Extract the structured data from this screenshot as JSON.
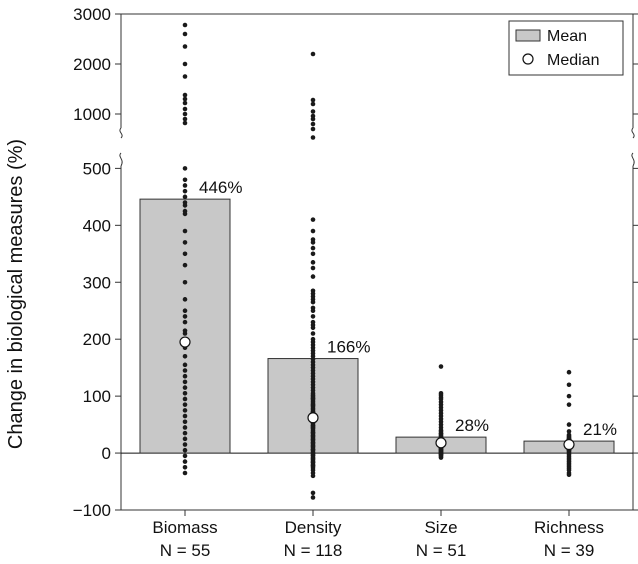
{
  "chart_data": {
    "type": "bar",
    "ylabel": "Change in biological measures (%)",
    "categories": [
      {
        "name": "Biomass",
        "n": "N = 55"
      },
      {
        "name": "Density",
        "n": "N = 118"
      },
      {
        "name": "Size",
        "n": "N = 51"
      },
      {
        "name": "Richness",
        "n": "N = 39"
      }
    ],
    "series": [
      {
        "name": "Mean",
        "values": [
          446,
          166,
          28,
          21
        ]
      },
      {
        "name": "Median",
        "values": [
          195,
          62,
          18,
          15
        ]
      }
    ],
    "bar_labels": [
      "446%",
      "166%",
      "28%",
      "21%"
    ],
    "legend": {
      "position": "top-right",
      "entries": [
        "Mean",
        "Median"
      ]
    },
    "axis": {
      "broken": true,
      "lower_ylim": [
        -100,
        520
      ],
      "upper_ylim": [
        520,
        3000
      ],
      "lower_ticks": [
        -100,
        0,
        100,
        200,
        300,
        400,
        500
      ],
      "lower_tick_labels": [
        "−100",
        "0",
        "100",
        "200",
        "300",
        "400",
        "500"
      ],
      "upper_ticks": [
        1000,
        2000,
        3000
      ],
      "upper_tick_labels": [
        "1000",
        "2000",
        "3000"
      ]
    },
    "colors": {
      "bar_fill": "#c8c8c8",
      "bar_stroke": "#333333",
      "points": "#1a1a1a",
      "median_fill": "#ffffff"
    },
    "points": [
      [
        2780,
        2600,
        2350,
        2000,
        1750,
        1380,
        1300,
        1220,
        1100,
        1000,
        900,
        820,
        500,
        480,
        470,
        460,
        450,
        440,
        435,
        425,
        420,
        390,
        370,
        350,
        330,
        300,
        270,
        250,
        230,
        215,
        200,
        185,
        170,
        155,
        145,
        135,
        125,
        115,
        105,
        95,
        85,
        75,
        65,
        55,
        45,
        35,
        25,
        15,
        5,
        -5,
        -15,
        -25,
        -35,
        210,
        240
      ],
      [
        2200,
        1280,
        1200,
        1050,
        960,
        900,
        800,
        700,
        530,
        410,
        390,
        375,
        370,
        360,
        350,
        335,
        325,
        310,
        285,
        280,
        275,
        270,
        265,
        255,
        250,
        240,
        230,
        225,
        220,
        210,
        200,
        195,
        190,
        185,
        180,
        175,
        170,
        165,
        160,
        155,
        150,
        145,
        140,
        135,
        130,
        125,
        120,
        115,
        110,
        105,
        100,
        97,
        94,
        91,
        88,
        85,
        82,
        79,
        76,
        73,
        70,
        67,
        64,
        61,
        58,
        55,
        52,
        49,
        46,
        43,
        40,
        37,
        34,
        31,
        28,
        25,
        22,
        19,
        16,
        13,
        10,
        7,
        4,
        1,
        -2,
        -5,
        -8,
        -11,
        -14,
        -17,
        -20,
        -23,
        -26,
        -30,
        -35,
        -40,
        -70,
        -78,
        102,
        96,
        84,
        72,
        66,
        54,
        48,
        36,
        24,
        18,
        12,
        6,
        0,
        -4,
        -10,
        -16,
        -22,
        60,
        45,
        30
      ],
      [
        152,
        105,
        102,
        98,
        95,
        90,
        85,
        80,
        75,
        70,
        65,
        60,
        55,
        50,
        45,
        40,
        35,
        32,
        30,
        28,
        26,
        24,
        22,
        20,
        18,
        16,
        14,
        12,
        10,
        8,
        6,
        4,
        2,
        0,
        -2,
        -4,
        -6,
        -8,
        38,
        34,
        27,
        21,
        15,
        11,
        9,
        7,
        5,
        3,
        1,
        -1,
        -3
      ],
      [
        142,
        120,
        100,
        85,
        50,
        38,
        32,
        30,
        28,
        26,
        24,
        22,
        20,
        18,
        16,
        14,
        12,
        10,
        8,
        6,
        4,
        2,
        0,
        -3,
        -6,
        -9,
        -12,
        -15,
        -18,
        -21,
        -24,
        -27,
        -30,
        -35,
        -38,
        25,
        19,
        11,
        5
      ]
    ]
  }
}
